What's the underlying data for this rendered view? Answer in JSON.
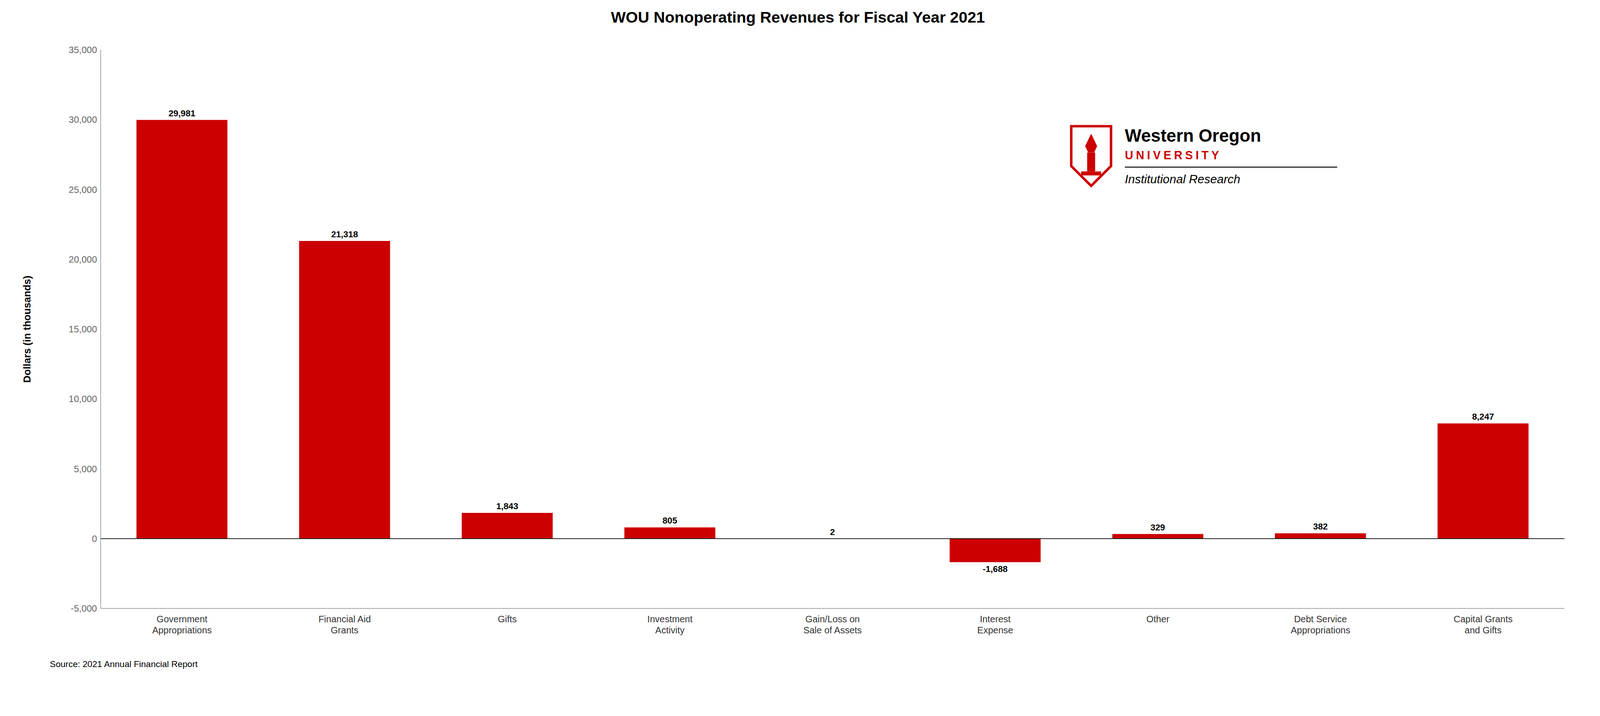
{
  "chart_data": {
    "type": "bar",
    "title": "WOU Nonoperating Revenues for Fiscal Year 2021",
    "categories": [
      "Government\nAppropriations",
      "Financial Aid\nGrants",
      "Gifts",
      "Investment\nActivity",
      "Gain/Loss on\nSale of Assets",
      "Interest\nExpense",
      "Other",
      "Debt Service\nAppropriations",
      "Capital Grants\nand Gifts"
    ],
    "values": [
      29981,
      21318,
      1843,
      805,
      2,
      -1688,
      329,
      382,
      8247
    ],
    "value_labels": [
      "29,981",
      "21,318",
      "1,843",
      "805",
      "2",
      "-1,688",
      "329",
      "382",
      "8,247"
    ],
    "data_labels": true,
    "color": "#CC0000",
    "ylabel": "Dollars (in thousands)",
    "ylim": [
      -5000,
      35000
    ],
    "yticks": [
      {
        "value": -5000,
        "label": "-5,000"
      },
      0,
      {
        "value": 5000,
        "label": "5,000"
      },
      {
        "value": 10000,
        "label": "10,000"
      },
      {
        "value": 15000,
        "label": "15,000"
      },
      {
        "value": 20000,
        "label": "20,000"
      },
      {
        "value": 25000,
        "label": "25,000"
      },
      {
        "value": 30000,
        "label": "30,000"
      },
      {
        "value": 35000,
        "label": "35,000"
      }
    ],
    "grid": false,
    "annotations": [
      "Source: 2021 Annual Financial Report",
      "Western Oregon",
      "UNIVERSITY",
      "Institutional Research"
    ]
  }
}
